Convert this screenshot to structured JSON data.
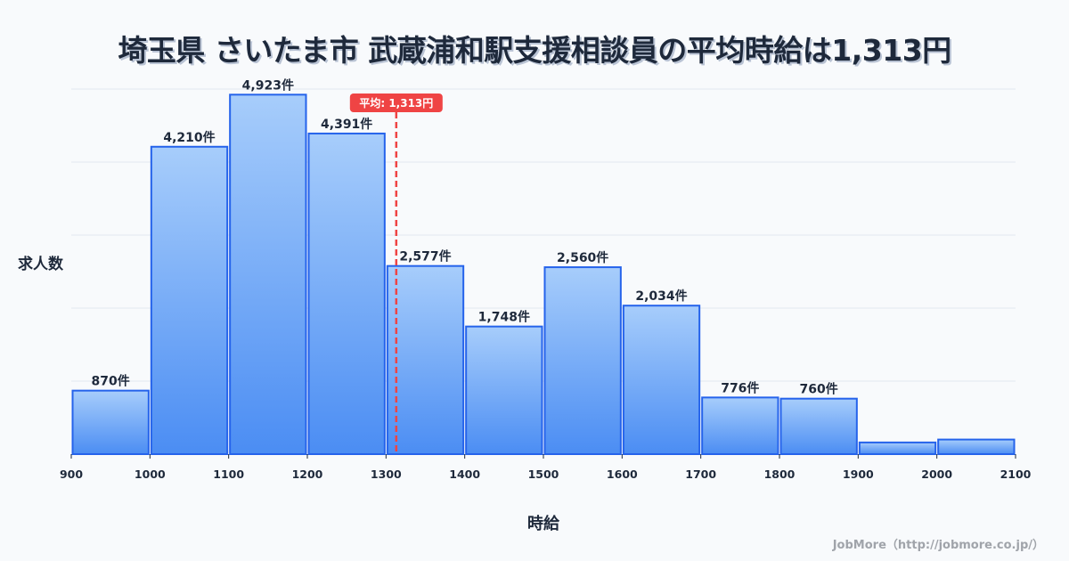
{
  "title": "埼玉県 さいたま市 武蔵浦和駅支援相談員の平均時給は1,313円",
  "axis": {
    "ylabel": "求人数",
    "xlabel": "時給"
  },
  "credit": "JobMore（http://jobmore.co.jp/）",
  "average": {
    "value": 1313,
    "label": "平均: 1,313円",
    "color": "#ef4444"
  },
  "colors": {
    "bar_top": "#a7cdfb",
    "bar_bottom": "#4b8df3",
    "bar_stroke": "#2563eb",
    "grid": "#e2e8f0",
    "text": "#1e293b",
    "background": "#f8fafc"
  },
  "chart_data": {
    "type": "bar",
    "title": "埼玉県 さいたま市 武蔵浦和駅支援相談員の平均時給は1,313円",
    "xlabel": "時給",
    "ylabel": "求人数",
    "x_ticks": [
      900,
      1000,
      1100,
      1200,
      1300,
      1400,
      1500,
      1600,
      1700,
      1800,
      1900,
      2000,
      2100
    ],
    "bins": [
      {
        "from": 900,
        "to": 1000,
        "value": 870,
        "label": "870件"
      },
      {
        "from": 1000,
        "to": 1100,
        "value": 4210,
        "label": "4,210件"
      },
      {
        "from": 1100,
        "to": 1200,
        "value": 4923,
        "label": "4,923件"
      },
      {
        "from": 1200,
        "to": 1300,
        "value": 4391,
        "label": "4,391件"
      },
      {
        "from": 1300,
        "to": 1400,
        "value": 2577,
        "label": "2,577件"
      },
      {
        "from": 1400,
        "to": 1500,
        "value": 1748,
        "label": "1,748件"
      },
      {
        "from": 1500,
        "to": 1600,
        "value": 2560,
        "label": "2,560件"
      },
      {
        "from": 1600,
        "to": 1700,
        "value": 2034,
        "label": "2,034件"
      },
      {
        "from": 1700,
        "to": 1800,
        "value": 776,
        "label": "776件"
      },
      {
        "from": 1800,
        "to": 1900,
        "value": 760,
        "label": "760件"
      },
      {
        "from": 1900,
        "to": 2000,
        "value": 160,
        "label": ""
      },
      {
        "from": 2000,
        "to": 2100,
        "value": 200,
        "label": ""
      }
    ],
    "categories": [
      "900-1000",
      "1000-1100",
      "1100-1200",
      "1200-1300",
      "1300-1400",
      "1400-1500",
      "1500-1600",
      "1600-1700",
      "1700-1800",
      "1800-1900",
      "1900-2000",
      "2000-2100"
    ],
    "values": [
      870,
      4210,
      4923,
      4391,
      2577,
      1748,
      2560,
      2034,
      776,
      760,
      160,
      200
    ],
    "xlim": [
      900,
      2100
    ],
    "ylim": [
      0,
      5000
    ],
    "grid": true,
    "gridlines_y": [
      1000,
      2000,
      3000,
      4000,
      5000
    ],
    "annotations": [
      {
        "type": "vline",
        "x": 1313,
        "label": "平均: 1,313円",
        "style": "dashed",
        "color": "#ef4444"
      }
    ],
    "legend": null
  }
}
